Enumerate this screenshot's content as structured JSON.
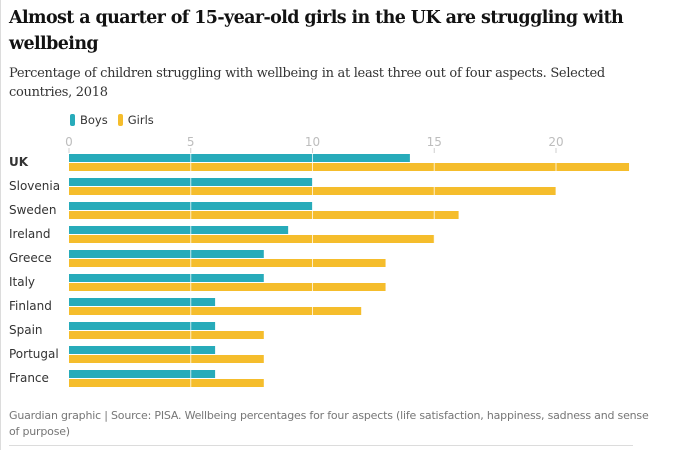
{
  "header": {
    "title": "Almost a quarter of 15-year-old girls in the UK are struggling with wellbeing",
    "subtitle": "Percentage of children struggling with wellbeing in at least three out of four aspects. Selected countries, 2018"
  },
  "legend": [
    {
      "label": "Boys",
      "color": "#27abba"
    },
    {
      "label": "Girls",
      "color": "#f5bd2c"
    }
  ],
  "footer": "Guardian graphic | Source: PISA. Wellbeing percentages for four aspects (life satisfaction, happiness, sadness and sense of purpose)",
  "chart_data": {
    "type": "bar",
    "orientation": "horizontal",
    "title": "Almost a quarter of 15-year-old girls in the UK are struggling with wellbeing",
    "subtitle": "Percentage of children struggling with wellbeing in at least three out of four aspects. Selected countries, 2018",
    "xlabel": "",
    "ylabel": "",
    "categories": [
      "UK",
      "Slovenia",
      "Sweden",
      "Ireland",
      "Greece",
      "Italy",
      "Finland",
      "Spain",
      "Portugal",
      "France"
    ],
    "highlight_category": "UK",
    "series": [
      {
        "name": "Boys",
        "color": "#27abba",
        "values": [
          14,
          10,
          10,
          9,
          8,
          8,
          6,
          6,
          6,
          6
        ]
      },
      {
        "name": "Girls",
        "color": "#f5bd2c",
        "values": [
          23,
          20,
          16,
          15,
          13,
          13,
          12,
          8,
          8,
          8
        ]
      }
    ],
    "xticks": [
      0,
      5,
      10,
      15,
      20
    ],
    "xlim": [
      0,
      23.5
    ],
    "axis_position": "top",
    "grid": true,
    "legend_position": "top-left"
  }
}
